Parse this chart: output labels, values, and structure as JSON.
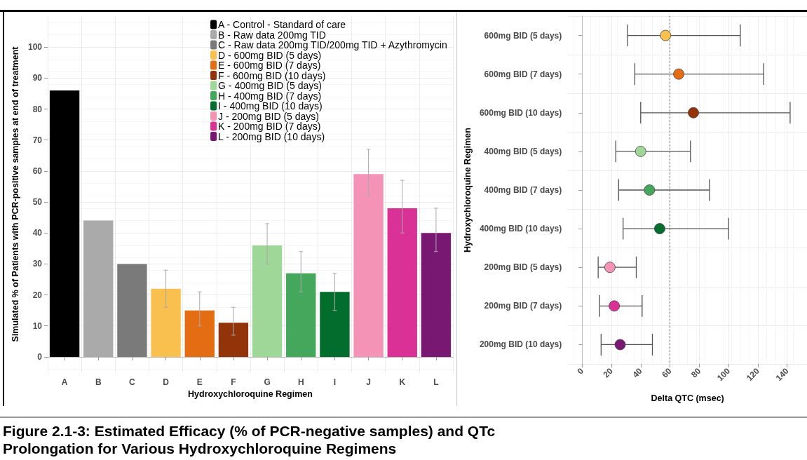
{
  "chart_data": [
    {
      "type": "bar",
      "xlabel": "Hydroxychloroquine Regimen",
      "ylabel": "Simulated % of Patients with PCR-positive samples at end of treatment",
      "categories": [
        "A",
        "B",
        "C",
        "D",
        "E",
        "F",
        "G",
        "H",
        "I",
        "J",
        "K",
        "L"
      ],
      "series": [
        {
          "name": "A - Control - Standard of care",
          "color": "#000000",
          "values": [
            86,
            null,
            null,
            null,
            null,
            null,
            null,
            null,
            null,
            null,
            null,
            null
          ]
        },
        {
          "name": "B - Raw data 200mg TID",
          "color": "#aaaaaa",
          "values": [
            null,
            44,
            null,
            null,
            null,
            null,
            null,
            null,
            null,
            null,
            null,
            null
          ]
        },
        {
          "name": "C - Raw data 200mg TID/200mg TID + Azythromycin",
          "color": "#7a7a7a",
          "values": [
            null,
            null,
            30,
            null,
            null,
            null,
            null,
            null,
            null,
            null,
            null,
            null
          ]
        },
        {
          "name": "D - 600mg BID (5 days)",
          "color": "#f9bf4f",
          "values": [
            null,
            null,
            null,
            22,
            null,
            null,
            null,
            null,
            null,
            null,
            null,
            null
          ],
          "errors": [
            null,
            null,
            null,
            [
              16,
              28
            ],
            null,
            null,
            null,
            null,
            null,
            null,
            null,
            null
          ]
        },
        {
          "name": "E - 600mg BID (7 days)",
          "color": "#e46c12",
          "values": [
            null,
            null,
            null,
            null,
            15,
            null,
            null,
            null,
            null,
            null,
            null,
            null
          ],
          "errors": [
            null,
            null,
            null,
            null,
            [
              10,
              21
            ],
            null,
            null,
            null,
            null,
            null,
            null,
            null
          ]
        },
        {
          "name": "F - 600mg BID (10 days)",
          "color": "#92330a",
          "values": [
            null,
            null,
            null,
            null,
            null,
            11,
            null,
            null,
            null,
            null,
            null,
            null
          ],
          "errors": [
            null,
            null,
            null,
            null,
            null,
            [
              7,
              16
            ],
            null,
            null,
            null,
            null,
            null,
            null
          ]
        },
        {
          "name": "G - 400mg BID (5 days)",
          "color": "#9ed797",
          "values": [
            null,
            null,
            null,
            null,
            null,
            null,
            36,
            null,
            null,
            null,
            null,
            null
          ],
          "errors": [
            null,
            null,
            null,
            null,
            null,
            null,
            [
              30,
              43
            ],
            null,
            null,
            null,
            null,
            null
          ]
        },
        {
          "name": "H - 400mg BID (7 days)",
          "color": "#44a75b",
          "values": [
            null,
            null,
            null,
            null,
            null,
            null,
            null,
            27,
            null,
            null,
            null,
            null
          ],
          "errors": [
            null,
            null,
            null,
            null,
            null,
            null,
            null,
            [
              21,
              34
            ],
            null,
            null,
            null,
            null
          ]
        },
        {
          "name": "I - 400mg BID (10 days)",
          "color": "#036d2e",
          "values": [
            null,
            null,
            null,
            null,
            null,
            null,
            null,
            null,
            21,
            null,
            null,
            null
          ],
          "errors": [
            null,
            null,
            null,
            null,
            null,
            null,
            null,
            null,
            [
              15,
              27
            ],
            null,
            null,
            null
          ]
        },
        {
          "name": "J - 200mg BID (5 days)",
          "color": "#f493b6",
          "values": [
            null,
            null,
            null,
            null,
            null,
            null,
            null,
            null,
            null,
            59,
            null,
            null
          ],
          "errors": [
            null,
            null,
            null,
            null,
            null,
            null,
            null,
            null,
            null,
            [
              52,
              67
            ],
            null,
            null
          ]
        },
        {
          "name": "K - 200mg BID (7 days)",
          "color": "#da3196",
          "values": [
            null,
            null,
            null,
            null,
            null,
            null,
            null,
            null,
            null,
            null,
            48,
            null
          ],
          "errors": [
            null,
            null,
            null,
            null,
            null,
            null,
            null,
            null,
            null,
            null,
            [
              40,
              57
            ],
            null
          ]
        },
        {
          "name": "L - 200mg BID (10 days)",
          "color": "#781873",
          "values": [
            null,
            null,
            null,
            null,
            null,
            null,
            null,
            null,
            null,
            null,
            null,
            40
          ],
          "errors": [
            null,
            null,
            null,
            null,
            null,
            null,
            null,
            null,
            null,
            null,
            null,
            [
              34,
              48
            ]
          ]
        }
      ],
      "ylim": [
        -5,
        110
      ],
      "yticks": [
        0,
        10,
        20,
        30,
        40,
        50,
        60,
        70,
        80,
        90,
        100
      ],
      "grid": true,
      "legend": "top right",
      "annotations": [
        "Figure 2.1-3: Estimated Efficacy (% of PCR-negative samples) and QTc Prolongation for Various Hydroxychloroquine Regimens"
      ]
    },
    {
      "type": "scatter",
      "orientation": "horizontal",
      "xlabel": "Delta QTC (msec)",
      "ylabel": "Hydroxychloroquine Regimen",
      "categories": [
        "600mg BID (5 days)",
        "600mg BID (7 days)",
        "600mg BID (10 days)",
        "400mg BID (5 days)",
        "400mg BID (7 days)",
        "400mg BID (10 days)",
        "200mg BID (5 days)",
        "200mg BID (7 days)",
        "200mg BID (10 days)"
      ],
      "values": [
        57,
        66,
        76,
        40,
        46,
        53,
        19,
        22,
        26
      ],
      "errors": [
        [
          31,
          108
        ],
        [
          36,
          124
        ],
        [
          40,
          142
        ],
        [
          23,
          74
        ],
        [
          25,
          87
        ],
        [
          28,
          100
        ],
        [
          11,
          37
        ],
        [
          12,
          41
        ],
        [
          13,
          48
        ]
      ],
      "colors": [
        "#f9bf4f",
        "#e46c12",
        "#92330a",
        "#9ed797",
        "#44a75b",
        "#036d2e",
        "#f493b6",
        "#da3196",
        "#781873"
      ],
      "marker": "circle",
      "xlim": [
        -10,
        154
      ],
      "xticks": [
        0,
        20,
        40,
        60,
        80,
        100,
        120,
        140
      ],
      "grid": true,
      "ref_lines": [
        {
          "axis": "x",
          "value": 60,
          "line_style": "dotted",
          "color": "#555555"
        }
      ]
    }
  ]
}
